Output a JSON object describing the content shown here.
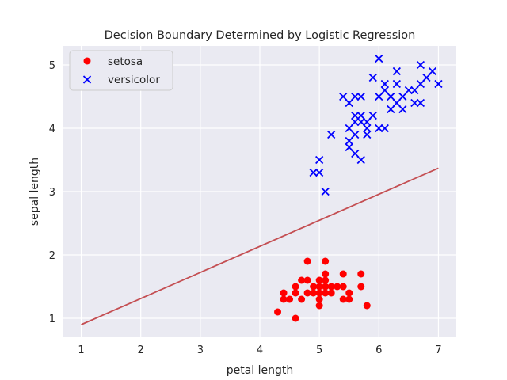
{
  "chart_data": {
    "type": "scatter",
    "title": "Decision Boundary Determined by Logistic Regression",
    "xlabel": "petal length",
    "ylabel": "sepal length",
    "xlim": [
      0.7,
      7.3
    ],
    "ylim": [
      0.7,
      5.3
    ],
    "xticks": [
      1,
      2,
      3,
      4,
      5,
      6,
      7
    ],
    "yticks": [
      1,
      2,
      3,
      4,
      5
    ],
    "grid": true,
    "legend_position": "top-left",
    "colors": {
      "background": "#eaeaf2",
      "grid": "#ffffff",
      "setosa": "#ff0000",
      "versicolor": "#0000ff",
      "boundary": "#c44e52"
    },
    "series": [
      {
        "name": "setosa",
        "marker": "circle",
        "points": [
          [
            4.3,
            1.1
          ],
          [
            4.4,
            1.3
          ],
          [
            4.4,
            1.4
          ],
          [
            4.5,
            1.3
          ],
          [
            4.6,
            1.0
          ],
          [
            4.6,
            1.4
          ],
          [
            4.6,
            1.5
          ],
          [
            4.7,
            1.3
          ],
          [
            4.7,
            1.6
          ],
          [
            4.8,
            1.4
          ],
          [
            4.8,
            1.6
          ],
          [
            4.8,
            1.9
          ],
          [
            4.9,
            1.4
          ],
          [
            4.9,
            1.5
          ],
          [
            5.0,
            1.2
          ],
          [
            5.0,
            1.3
          ],
          [
            5.0,
            1.4
          ],
          [
            5.0,
            1.5
          ],
          [
            5.0,
            1.6
          ],
          [
            5.1,
            1.4
          ],
          [
            5.1,
            1.5
          ],
          [
            5.1,
            1.6
          ],
          [
            5.1,
            1.7
          ],
          [
            5.1,
            1.9
          ],
          [
            5.2,
            1.4
          ],
          [
            5.2,
            1.5
          ],
          [
            5.3,
            1.5
          ],
          [
            5.4,
            1.3
          ],
          [
            5.4,
            1.5
          ],
          [
            5.4,
            1.7
          ],
          [
            5.5,
            1.3
          ],
          [
            5.5,
            1.4
          ],
          [
            5.7,
            1.5
          ],
          [
            5.7,
            1.7
          ],
          [
            5.8,
            1.2
          ]
        ]
      },
      {
        "name": "versicolor",
        "marker": "x",
        "points": [
          [
            4.9,
            3.3
          ],
          [
            5.0,
            3.3
          ],
          [
            5.0,
            3.5
          ],
          [
            5.1,
            3.0
          ],
          [
            5.2,
            3.9
          ],
          [
            5.4,
            4.5
          ],
          [
            5.5,
            3.7
          ],
          [
            5.5,
            3.8
          ],
          [
            5.5,
            4.0
          ],
          [
            5.5,
            4.4
          ],
          [
            5.6,
            3.6
          ],
          [
            5.6,
            3.9
          ],
          [
            5.6,
            4.1
          ],
          [
            5.6,
            4.2
          ],
          [
            5.6,
            4.5
          ],
          [
            5.7,
            3.5
          ],
          [
            5.7,
            4.1
          ],
          [
            5.7,
            4.2
          ],
          [
            5.7,
            4.5
          ],
          [
            5.8,
            3.9
          ],
          [
            5.8,
            4.0
          ],
          [
            5.8,
            4.1
          ],
          [
            5.9,
            4.2
          ],
          [
            5.9,
            4.8
          ],
          [
            6.0,
            4.0
          ],
          [
            6.0,
            4.5
          ],
          [
            6.0,
            5.1
          ],
          [
            6.1,
            4.0
          ],
          [
            6.1,
            4.6
          ],
          [
            6.1,
            4.7
          ],
          [
            6.2,
            4.3
          ],
          [
            6.2,
            4.5
          ],
          [
            6.3,
            4.4
          ],
          [
            6.3,
            4.7
          ],
          [
            6.3,
            4.9
          ],
          [
            6.4,
            4.3
          ],
          [
            6.4,
            4.5
          ],
          [
            6.5,
            4.6
          ],
          [
            6.6,
            4.4
          ],
          [
            6.6,
            4.6
          ],
          [
            6.7,
            4.4
          ],
          [
            6.7,
            4.7
          ],
          [
            6.7,
            5.0
          ],
          [
            6.8,
            4.8
          ],
          [
            6.9,
            4.9
          ],
          [
            7.0,
            4.7
          ]
        ]
      }
    ],
    "decision_boundary": {
      "type": "line",
      "x": [
        1.0,
        7.0
      ],
      "y": [
        0.9,
        3.37
      ]
    }
  }
}
